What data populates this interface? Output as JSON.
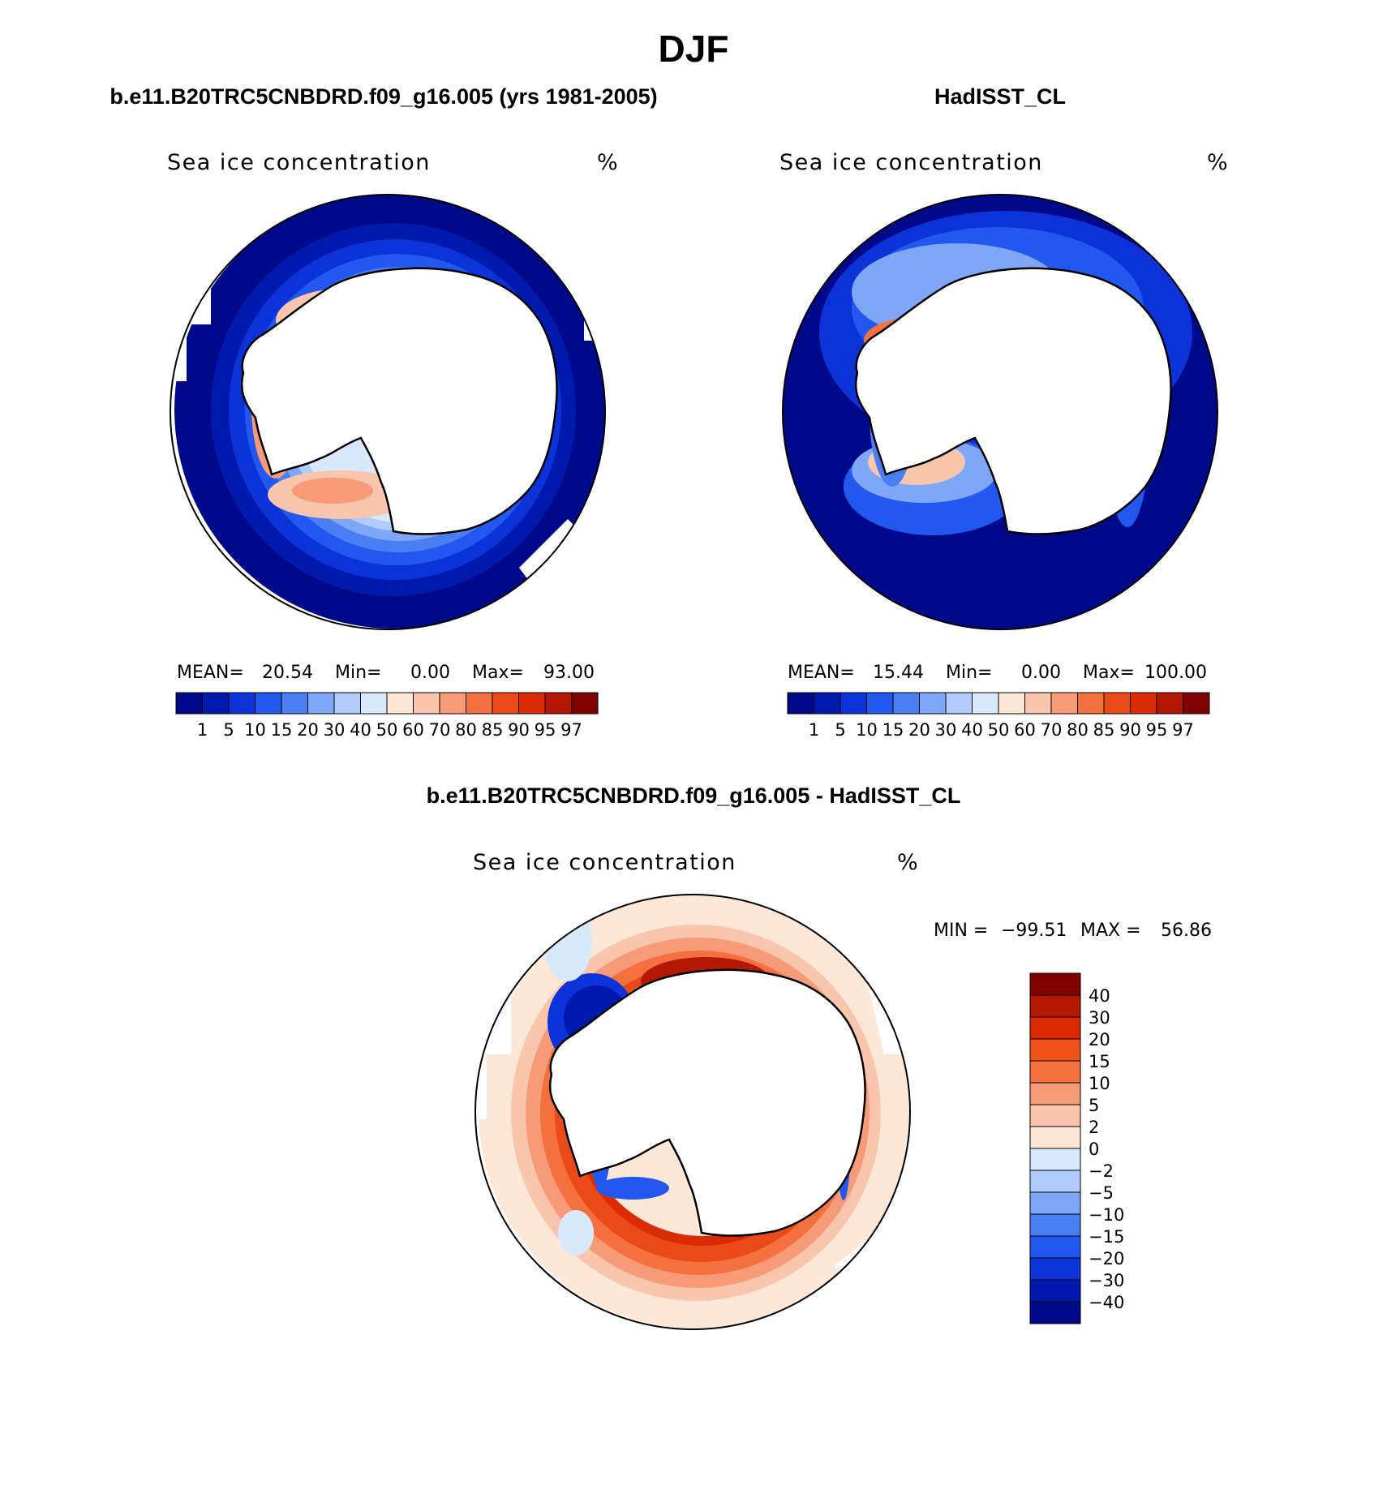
{
  "figure": {
    "main_title": "DJF",
    "panel_left_title": "b.e11.B20TRC5CNBDRD.f09_g16.005 (yrs 1981-2005)",
    "panel_right_title": "HadISST_CL",
    "panel_diff_title": "b.e11.B20TRC5CNBDRD.f09_g16.005 - HadISST_CL"
  },
  "chart_data": [
    {
      "type": "heatmap",
      "projection": "south-polar-stereographic",
      "variable_label": "Sea ice concentration",
      "units_label": "%",
      "stats": {
        "mean_label": "MEAN=",
        "mean": "20.54",
        "min_label": "Min=",
        "min": "0.00",
        "max_label": "Max=",
        "max": "93.00"
      },
      "colorbar": {
        "orientation": "horizontal",
        "levels": [
          "1",
          "5",
          "10",
          "15",
          "20",
          "30",
          "40",
          "50",
          "60",
          "70",
          "80",
          "85",
          "90",
          "95",
          "97"
        ],
        "colors": [
          "#00098a",
          "#001aad",
          "#0b33d8",
          "#2257f0",
          "#4a7ff4",
          "#7ea8f7",
          "#b1cbfb",
          "#d9e9fc",
          "#fde8d8",
          "#f9c5ad",
          "#f69a78",
          "#f4703f",
          "#ea4a17",
          "#db2b05",
          "#b51802",
          "#7e0000"
        ]
      }
    },
    {
      "type": "heatmap",
      "projection": "south-polar-stereographic",
      "variable_label": "Sea ice concentration",
      "units_label": "%",
      "stats": {
        "mean_label": "MEAN=",
        "mean": "15.44",
        "min_label": "Min=",
        "min": "0.00",
        "max_label": "Max=",
        "max": "100.00"
      },
      "colorbar": {
        "orientation": "horizontal",
        "levels": [
          "1",
          "5",
          "10",
          "15",
          "20",
          "30",
          "40",
          "50",
          "60",
          "70",
          "80",
          "85",
          "90",
          "95",
          "97"
        ],
        "colors": [
          "#00098a",
          "#001aad",
          "#0b33d8",
          "#2257f0",
          "#4a7ff4",
          "#7ea8f7",
          "#b1cbfb",
          "#d9e9fc",
          "#fde8d8",
          "#f9c5ad",
          "#f69a78",
          "#f4703f",
          "#ea4a17",
          "#db2b05",
          "#b51802",
          "#7e0000"
        ]
      }
    },
    {
      "type": "heatmap",
      "projection": "south-polar-stereographic",
      "variable_label": "Sea ice concentration",
      "units_label": "%",
      "stats": {
        "min_label": "MIN =",
        "min": "−99.51",
        "max_label": "MAX =",
        "max": "56.86"
      },
      "colorbar": {
        "orientation": "vertical",
        "levels": [
          "40",
          "30",
          "20",
          "15",
          "10",
          "5",
          "2",
          "0",
          "−2",
          "−5",
          "−10",
          "−15",
          "−20",
          "−30",
          "−40"
        ],
        "colors": [
          "#7e0000",
          "#b51802",
          "#db2b05",
          "#f0531a",
          "#f4703f",
          "#f69a78",
          "#f9c5ad",
          "#fde8d8",
          "#d9e9fc",
          "#b1cbfb",
          "#7ea8f7",
          "#4a7ff4",
          "#2257f0",
          "#0b33d8",
          "#001aad",
          "#00098a"
        ]
      }
    }
  ]
}
